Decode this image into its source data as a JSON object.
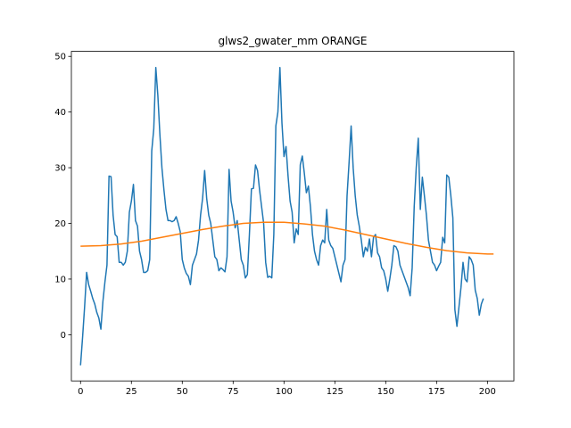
{
  "chart_data": {
    "type": "line",
    "title": "glws2_gwater_mm ORANGE",
    "xlabel": "",
    "ylabel": "",
    "xlim": [
      -4.5,
      213
    ],
    "ylim": [
      -8.3,
      50.9
    ],
    "grid": false,
    "x_ticks": [
      0,
      25,
      50,
      75,
      100,
      125,
      150,
      175,
      200
    ],
    "y_ticks": [
      0,
      10,
      20,
      30,
      40,
      50
    ],
    "x_tick_labels": [
      "0",
      "25",
      "50",
      "75",
      "100",
      "125",
      "150",
      "175",
      "200"
    ],
    "y_tick_labels": [
      "0",
      "10",
      "20",
      "30",
      "40",
      "50"
    ],
    "series": [
      {
        "color": "#1f77b4",
        "points": [
          [
            0,
            -5.5
          ],
          [
            1,
            -0.5
          ],
          [
            2,
            5
          ],
          [
            3,
            11.2
          ],
          [
            4,
            9
          ],
          [
            5,
            7.8
          ],
          [
            6,
            6.5
          ],
          [
            7,
            5.5
          ],
          [
            8,
            4
          ],
          [
            9,
            3
          ],
          [
            10,
            1
          ],
          [
            11,
            6
          ],
          [
            12,
            9.5
          ],
          [
            13,
            12.5
          ],
          [
            14,
            28.5
          ],
          [
            15,
            28.4
          ],
          [
            16,
            21.5
          ],
          [
            17,
            18
          ],
          [
            18,
            17.6
          ],
          [
            19,
            13
          ],
          [
            20,
            13
          ],
          [
            21,
            12.5
          ],
          [
            22,
            13
          ],
          [
            23,
            15
          ],
          [
            24,
            22
          ],
          [
            25,
            24
          ],
          [
            26,
            27
          ],
          [
            27,
            20.5
          ],
          [
            28,
            19.5
          ],
          [
            29,
            15
          ],
          [
            30,
            13.5
          ],
          [
            31,
            11.2
          ],
          [
            32,
            11.2
          ],
          [
            33,
            11.5
          ],
          [
            34,
            13.5
          ],
          [
            35,
            33
          ],
          [
            36,
            37
          ],
          [
            37,
            48
          ],
          [
            38,
            43
          ],
          [
            39,
            36
          ],
          [
            40,
            30
          ],
          [
            41,
            26
          ],
          [
            42,
            22.5
          ],
          [
            43,
            20.5
          ],
          [
            44,
            20.5
          ],
          [
            45,
            20.3
          ],
          [
            46,
            20.5
          ],
          [
            47,
            21.2
          ],
          [
            48,
            20
          ],
          [
            49,
            18.5
          ],
          [
            50,
            13.5
          ],
          [
            51,
            12
          ],
          [
            52,
            11
          ],
          [
            53,
            10.5
          ],
          [
            54,
            9
          ],
          [
            55,
            12.5
          ],
          [
            56,
            13.5
          ],
          [
            57,
            14.5
          ],
          [
            58,
            17
          ],
          [
            59,
            21.5
          ],
          [
            60,
            24.5
          ],
          [
            61,
            29.5
          ],
          [
            62,
            24.5
          ],
          [
            63,
            21.5
          ],
          [
            64,
            20
          ],
          [
            65,
            17
          ],
          [
            66,
            14
          ],
          [
            67,
            13.5
          ],
          [
            68,
            11.5
          ],
          [
            69,
            12
          ],
          [
            70,
            11.7
          ],
          [
            71,
            11.3
          ],
          [
            72,
            14
          ],
          [
            73,
            29.7
          ],
          [
            74,
            24
          ],
          [
            75,
            22
          ],
          [
            76,
            19.2
          ],
          [
            77,
            20.5
          ],
          [
            78,
            17
          ],
          [
            79,
            13.5
          ],
          [
            80,
            12.5
          ],
          [
            81,
            10.2
          ],
          [
            82,
            10.8
          ],
          [
            83,
            18
          ],
          [
            84,
            26.2
          ],
          [
            85,
            26.3
          ],
          [
            86,
            30.5
          ],
          [
            87,
            29.5
          ],
          [
            88,
            26
          ],
          [
            89,
            23
          ],
          [
            90,
            20
          ],
          [
            91,
            13
          ],
          [
            92,
            10.3
          ],
          [
            93,
            10.5
          ],
          [
            94,
            10.2
          ],
          [
            95,
            18
          ],
          [
            96,
            37.5
          ],
          [
            97,
            40
          ],
          [
            98,
            48
          ],
          [
            99,
            38
          ],
          [
            100,
            32
          ],
          [
            101,
            33.8
          ],
          [
            102,
            28.5
          ],
          [
            103,
            24
          ],
          [
            104,
            22
          ],
          [
            105,
            16.5
          ],
          [
            106,
            19
          ],
          [
            107,
            18
          ],
          [
            108,
            30.5
          ],
          [
            109,
            32.1
          ],
          [
            110,
            29
          ],
          [
            111,
            25.5
          ],
          [
            112,
            26.7
          ],
          [
            113,
            23
          ],
          [
            114,
            18
          ],
          [
            115,
            15
          ],
          [
            116,
            13.5
          ],
          [
            117,
            12.5
          ],
          [
            118,
            16
          ],
          [
            119,
            17
          ],
          [
            120,
            16.5
          ],
          [
            121,
            22.5
          ],
          [
            122,
            17
          ],
          [
            123,
            16
          ],
          [
            124,
            15.5
          ],
          [
            125,
            14
          ],
          [
            126,
            12.5
          ],
          [
            127,
            11
          ],
          [
            128,
            9.5
          ],
          [
            129,
            12.5
          ],
          [
            130,
            13.5
          ],
          [
            131,
            25
          ],
          [
            132,
            31
          ],
          [
            133,
            37.5
          ],
          [
            134,
            30
          ],
          [
            135,
            25
          ],
          [
            136,
            21.5
          ],
          [
            137,
            19.5
          ],
          [
            138,
            17
          ],
          [
            139,
            14
          ],
          [
            140,
            15.7
          ],
          [
            141,
            15
          ],
          [
            142,
            17.2
          ],
          [
            143,
            14
          ],
          [
            144,
            17.5
          ],
          [
            145,
            18
          ],
          [
            146,
            14.7
          ],
          [
            147,
            14
          ],
          [
            148,
            12
          ],
          [
            149,
            11.5
          ],
          [
            150,
            10
          ],
          [
            151,
            7.8
          ],
          [
            152,
            10
          ],
          [
            153,
            12.5
          ],
          [
            154,
            16
          ],
          [
            155,
            15.8
          ],
          [
            156,
            15
          ],
          [
            157,
            12.5
          ],
          [
            158,
            11.5
          ],
          [
            159,
            10.5
          ],
          [
            160,
            9.5
          ],
          [
            161,
            8.5
          ],
          [
            162,
            7
          ],
          [
            163,
            12
          ],
          [
            164,
            23
          ],
          [
            165,
            30
          ],
          [
            166,
            35.3
          ],
          [
            167,
            22.5
          ],
          [
            168,
            28.3
          ],
          [
            169,
            25
          ],
          [
            170,
            21.5
          ],
          [
            171,
            17
          ],
          [
            172,
            15
          ],
          [
            173,
            13
          ],
          [
            174,
            12.5
          ],
          [
            175,
            11.5
          ],
          [
            176,
            12.3
          ],
          [
            177,
            13
          ],
          [
            178,
            17.5
          ],
          [
            179,
            16.5
          ],
          [
            180,
            28.7
          ],
          [
            181,
            28.3
          ],
          [
            182,
            25
          ],
          [
            183,
            21
          ],
          [
            184,
            4.5
          ],
          [
            185,
            1.5
          ],
          [
            186,
            5
          ],
          [
            187,
            8.5
          ],
          [
            188,
            13
          ],
          [
            189,
            10
          ],
          [
            190,
            9.5
          ],
          [
            191,
            14
          ],
          [
            192,
            13.5
          ],
          [
            193,
            12.5
          ],
          [
            194,
            8
          ],
          [
            195,
            6.5
          ],
          [
            196,
            3.5
          ],
          [
            197,
            5.5
          ],
          [
            198,
            6.5
          ]
        ]
      },
      {
        "color": "#ff7f0e",
        "x": [
          0,
          203
        ],
        "fit_points": [
          [
            0,
            15.9
          ],
          [
            10,
            16.0
          ],
          [
            20,
            16.3
          ],
          [
            30,
            16.8
          ],
          [
            40,
            17.5
          ],
          [
            50,
            18.2
          ],
          [
            60,
            18.9
          ],
          [
            70,
            19.5
          ],
          [
            80,
            20.0
          ],
          [
            90,
            20.2
          ],
          [
            100,
            20.2
          ],
          [
            110,
            19.9
          ],
          [
            120,
            19.5
          ],
          [
            130,
            18.8
          ],
          [
            140,
            18.0
          ],
          [
            150,
            17.2
          ],
          [
            160,
            16.4
          ],
          [
            170,
            15.7
          ],
          [
            180,
            15.1
          ],
          [
            190,
            14.7
          ],
          [
            200,
            14.5
          ],
          [
            203,
            14.5
          ]
        ]
      }
    ]
  }
}
